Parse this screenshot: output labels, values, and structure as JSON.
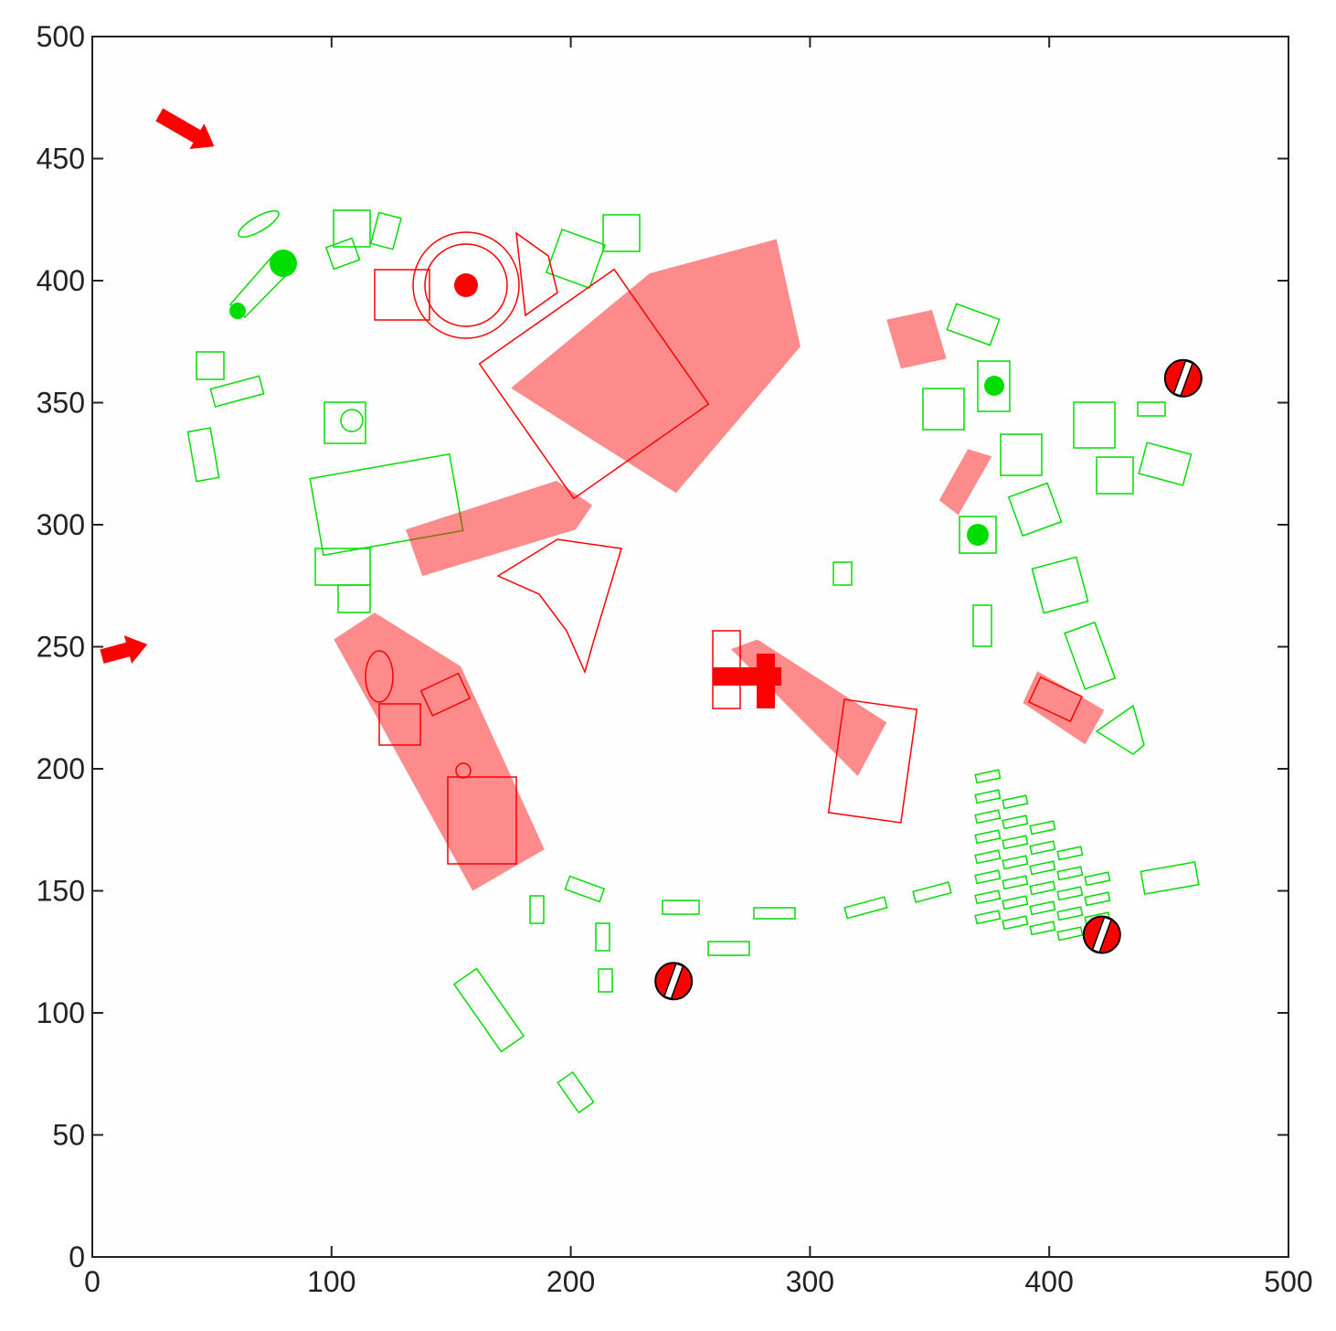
{
  "chart_data": {
    "type": "map",
    "xlim": [
      0,
      500
    ],
    "ylim": [
      0,
      500
    ],
    "xticks": [
      0,
      100,
      200,
      300,
      400,
      500
    ],
    "yticks": [
      0,
      50,
      100,
      150,
      200,
      250,
      300,
      350,
      400,
      450,
      500
    ],
    "region_color": "#ff0000",
    "regions": [
      {
        "x": [
          175,
          233,
          286,
          296,
          244
        ],
        "y": [
          356,
          403,
          417,
          373,
          313
        ]
      },
      {
        "x": [
          332,
          351,
          357,
          338
        ],
        "y": [
          384,
          388,
          368,
          364
        ]
      },
      {
        "x": [
          366,
          376,
          362,
          354
        ],
        "y": [
          331,
          328,
          304,
          310
        ]
      },
      {
        "x": [
          131,
          194,
          209,
          202,
          138
        ],
        "y": [
          298,
          318,
          308,
          298,
          279
        ]
      },
      {
        "x": [
          101,
          118,
          154,
          189,
          159
        ],
        "y": [
          253,
          264,
          242,
          167,
          150
        ]
      },
      {
        "x": [
          267,
          278,
          332,
          320
        ],
        "y": [
          249,
          253,
          219,
          197
        ]
      },
      {
        "x": [
          389,
          395,
          423,
          415
        ],
        "y": [
          227,
          240,
          224,
          210
        ]
      }
    ],
    "no_entry": {
      "x": [
        456,
        422,
        243
      ],
      "y": [
        360,
        132,
        113
      ]
    },
    "arrows": [
      {
        "x": [
          28,
          51
        ],
        "y": [
          468,
          455
        ]
      },
      {
        "x": [
          4,
          23
        ],
        "y": [
          246,
          251
        ]
      }
    ]
  }
}
